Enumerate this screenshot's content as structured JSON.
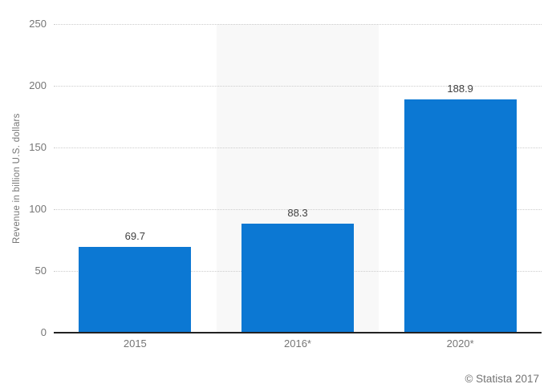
{
  "chart_data": {
    "type": "bar",
    "categories": [
      "2015",
      "2016*",
      "2020*"
    ],
    "values": [
      69.7,
      88.3,
      188.9
    ],
    "value_labels": [
      "69.7",
      "88.3",
      "188.9"
    ],
    "title": "",
    "xlabel": "",
    "ylabel": "Revenue in billion U.S. dollars",
    "ylim": [
      0,
      250
    ],
    "yticks": [
      0,
      50,
      100,
      150,
      200,
      250
    ],
    "grid": "horizontal-dotted",
    "legend_position": "none",
    "highlighted_category_index": 1,
    "colors": {
      "bar": "#0c78d3",
      "highlight_band": "#f8f8f8",
      "gridline": "#cccccc",
      "axis_line": "#222222",
      "tick_text": "#767676",
      "value_text": "#404040"
    }
  },
  "footer": {
    "credit": "© Statista 2017"
  }
}
